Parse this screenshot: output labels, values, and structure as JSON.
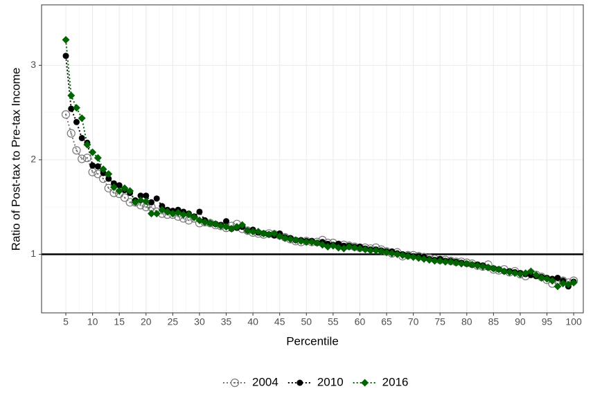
{
  "chart_data": {
    "type": "scatter",
    "x_label": "Percentile",
    "y_label": "Ratio of Post-tax to Pre-tax Income",
    "x": [
      5,
      6,
      7,
      8,
      9,
      10,
      11,
      12,
      13,
      14,
      15,
      16,
      17,
      18,
      19,
      20,
      21,
      22,
      23,
      24,
      25,
      26,
      27,
      28,
      29,
      30,
      31,
      32,
      33,
      34,
      35,
      36,
      37,
      38,
      39,
      40,
      41,
      42,
      43,
      44,
      45,
      46,
      47,
      48,
      49,
      50,
      51,
      52,
      53,
      54,
      55,
      56,
      57,
      58,
      59,
      60,
      61,
      62,
      63,
      64,
      65,
      66,
      67,
      68,
      69,
      70,
      71,
      72,
      73,
      74,
      75,
      76,
      77,
      78,
      79,
      80,
      81,
      82,
      83,
      84,
      85,
      86,
      87,
      88,
      89,
      90,
      91,
      92,
      93,
      94,
      95,
      96,
      97,
      98,
      99,
      100
    ],
    "series": [
      {
        "name": "2004",
        "color": "#777777",
        "marker": "circle-open",
        "values": [
          2.48,
          2.28,
          2.1,
          2.01,
          2.02,
          1.87,
          1.85,
          1.8,
          1.7,
          1.65,
          1.64,
          1.6,
          1.55,
          1.55,
          1.52,
          1.5,
          1.5,
          1.45,
          1.43,
          1.42,
          1.42,
          1.4,
          1.38,
          1.36,
          1.38,
          1.33,
          1.34,
          1.33,
          1.31,
          1.3,
          1.28,
          1.3,
          1.32,
          1.27,
          1.25,
          1.23,
          1.22,
          1.21,
          1.22,
          1.21,
          1.2,
          1.18,
          1.16,
          1.14,
          1.13,
          1.14,
          1.13,
          1.13,
          1.15,
          1.12,
          1.12,
          1.1,
          1.1,
          1.09,
          1.08,
          1.07,
          1.07,
          1.06,
          1.07,
          1.05,
          1.03,
          1.01,
          1.02,
          0.98,
          0.99,
          0.99,
          0.98,
          0.97,
          0.96,
          0.95,
          0.94,
          0.94,
          0.93,
          0.92,
          0.92,
          0.91,
          0.9,
          0.88,
          0.87,
          0.89,
          0.84,
          0.83,
          0.84,
          0.81,
          0.82,
          0.79,
          0.77,
          0.8,
          0.78,
          0.76,
          0.73,
          0.69,
          0.72,
          0.72,
          0.7,
          0.72
        ]
      },
      {
        "name": "2010",
        "color": "#000000",
        "marker": "circle",
        "values": [
          3.1,
          2.54,
          2.4,
          2.23,
          2.18,
          1.94,
          1.93,
          1.86,
          1.8,
          1.75,
          1.73,
          1.68,
          1.65,
          1.57,
          1.62,
          1.62,
          1.55,
          1.59,
          1.51,
          1.47,
          1.46,
          1.47,
          1.45,
          1.43,
          1.4,
          1.45,
          1.36,
          1.33,
          1.32,
          1.31,
          1.35,
          1.27,
          1.28,
          1.29,
          1.25,
          1.26,
          1.23,
          1.22,
          1.21,
          1.2,
          1.22,
          1.18,
          1.17,
          1.15,
          1.15,
          1.14,
          1.14,
          1.12,
          1.13,
          1.11,
          1.1,
          1.11,
          1.09,
          1.09,
          1.08,
          1.08,
          1.06,
          1.05,
          1.05,
          1.04,
          1.03,
          1.03,
          1.01,
          1.0,
          0.99,
          0.98,
          0.98,
          0.97,
          0.95,
          0.94,
          0.95,
          0.93,
          0.93,
          0.92,
          0.91,
          0.9,
          0.89,
          0.89,
          0.88,
          0.86,
          0.85,
          0.84,
          0.82,
          0.82,
          0.81,
          0.8,
          0.79,
          0.78,
          0.77,
          0.76,
          0.75,
          0.74,
          0.75,
          0.72,
          0.66,
          0.71
        ]
      },
      {
        "name": "2016",
        "color": "#006400",
        "marker": "diamond",
        "values": [
          3.27,
          2.68,
          2.55,
          2.44,
          2.16,
          2.08,
          2.02,
          1.9,
          1.85,
          1.71,
          1.67,
          1.7,
          1.67,
          1.55,
          1.57,
          1.56,
          1.43,
          1.43,
          1.47,
          1.45,
          1.43,
          1.44,
          1.42,
          1.42,
          1.39,
          1.36,
          1.34,
          1.33,
          1.32,
          1.3,
          1.29,
          1.27,
          1.29,
          1.31,
          1.25,
          1.24,
          1.24,
          1.22,
          1.21,
          1.22,
          1.19,
          1.17,
          1.16,
          1.15,
          1.14,
          1.13,
          1.13,
          1.12,
          1.1,
          1.08,
          1.09,
          1.07,
          1.06,
          1.08,
          1.07,
          1.06,
          1.05,
          1.04,
          1.04,
          1.03,
          1.02,
          1.01,
          1.0,
          0.99,
          0.98,
          0.97,
          0.96,
          0.95,
          0.94,
          0.93,
          0.93,
          0.92,
          0.92,
          0.91,
          0.9,
          0.9,
          0.89,
          0.88,
          0.87,
          0.86,
          0.85,
          0.84,
          0.82,
          0.81,
          0.8,
          0.79,
          0.8,
          0.82,
          0.78,
          0.75,
          0.74,
          0.72,
          0.66,
          0.69,
          0.68,
          0.7
        ]
      }
    ],
    "xlim": [
      0.46,
      101.8
    ],
    "ylim": [
      0.38,
      3.64
    ],
    "xticks": [
      5,
      10,
      15,
      20,
      25,
      30,
      35,
      40,
      45,
      50,
      55,
      60,
      65,
      70,
      75,
      80,
      85,
      90,
      95,
      100
    ],
    "yticks": [
      1,
      2,
      3
    ],
    "hline": 1,
    "grid": true,
    "line_style": "dotted",
    "legend": "bottom"
  }
}
